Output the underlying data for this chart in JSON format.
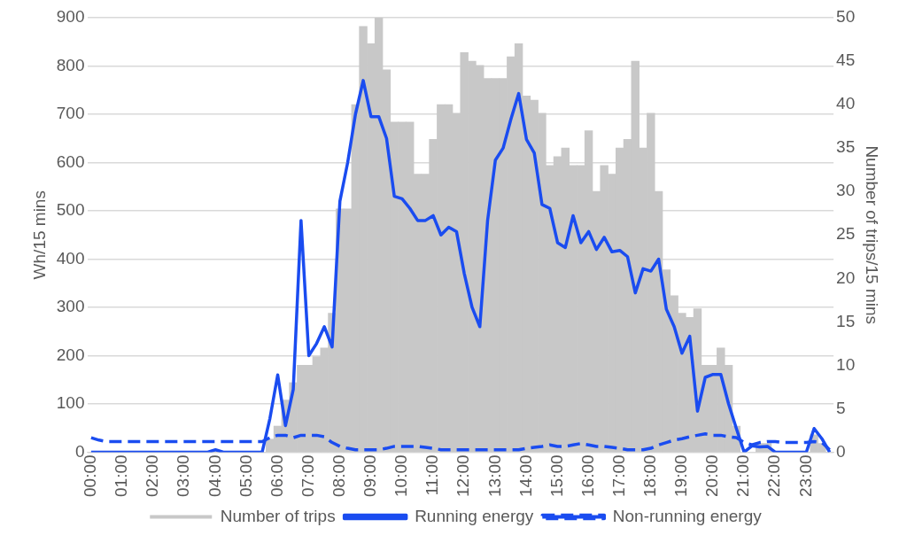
{
  "chart_data": {
    "type": "bar",
    "categories": [
      "00:00",
      null,
      null,
      null,
      "01:00",
      null,
      null,
      null,
      "02:00",
      null,
      null,
      null,
      "03:00",
      null,
      null,
      null,
      "04:00",
      null,
      null,
      null,
      "05:00",
      null,
      null,
      null,
      "06:00",
      null,
      null,
      null,
      "07:00",
      null,
      null,
      null,
      "08:00",
      null,
      null,
      null,
      "09:00",
      null,
      null,
      null,
      "10:00",
      null,
      null,
      null,
      "11:00",
      null,
      null,
      null,
      "12:00",
      null,
      null,
      null,
      "13:00",
      null,
      null,
      null,
      "14:00",
      null,
      null,
      null,
      "15:00",
      null,
      null,
      null,
      "16:00",
      null,
      null,
      null,
      "17:00",
      null,
      null,
      null,
      "18:00",
      null,
      null,
      null,
      "19:00",
      null,
      null,
      null,
      "20:00",
      null,
      null,
      null,
      "21:00",
      null,
      null,
      null,
      "22:00",
      null,
      null,
      null,
      "23:00",
      null,
      null,
      null
    ],
    "ylabel": "Wh/15 mins",
    "y2label": "Number of trips/15 mins",
    "ylim": [
      0,
      900
    ],
    "yticks": [
      0,
      100,
      200,
      300,
      400,
      500,
      600,
      700,
      800,
      900
    ],
    "y2lim": [
      0,
      50
    ],
    "y2ticks": [
      0,
      5,
      10,
      15,
      20,
      25,
      30,
      35,
      40,
      45,
      50
    ],
    "grid": "y",
    "legend": "bottom",
    "series": [
      {
        "name": "Number of trips",
        "axis": "y2",
        "color": "#c8c8c8",
        "values": [
          0,
          0,
          0,
          0,
          0,
          0,
          0,
          0,
          0,
          0,
          0,
          0,
          0,
          0,
          0,
          0,
          0,
          0,
          0,
          0,
          0,
          0,
          0,
          1.5,
          3,
          6,
          8,
          10,
          10,
          11,
          12,
          16,
          28,
          28,
          40,
          49,
          47,
          50,
          44,
          38,
          38,
          38,
          32,
          32,
          36,
          40,
          40,
          39,
          46,
          45,
          44.5,
          43,
          43,
          43,
          45.5,
          47,
          41,
          40.5,
          39,
          33,
          34,
          35,
          33,
          33,
          37,
          30,
          33,
          32,
          35,
          36,
          45,
          35,
          39,
          30,
          21,
          18,
          16,
          15.5,
          16.5,
          10,
          10,
          12,
          10,
          3,
          null,
          null,
          1,
          1,
          0,
          0,
          0,
          0,
          0,
          2,
          1,
          0
        ]
      },
      {
        "name": "Running energy",
        "type": "line",
        "line_style": "solid",
        "color": "#1a4cf0",
        "values": [
          0,
          0,
          0,
          0,
          0,
          0,
          0,
          0,
          0,
          0,
          0,
          0,
          0,
          0,
          0,
          0,
          5,
          0,
          0,
          0,
          0,
          0,
          0,
          70,
          160,
          55,
          130,
          480,
          200,
          225,
          260,
          218,
          520,
          600,
          700,
          770,
          695,
          695,
          650,
          530,
          525,
          505,
          480,
          480,
          490,
          450,
          466,
          457,
          370,
          300,
          260,
          480,
          605,
          630,
          690,
          743,
          648,
          620,
          513,
          505,
          434,
          424,
          490,
          434,
          457,
          420,
          445,
          415,
          418,
          405,
          330,
          380,
          375,
          400,
          296,
          260,
          205,
          240,
          85,
          155,
          161,
          161,
          100,
          49,
          0,
          13,
          11,
          12,
          0,
          0,
          0,
          0,
          0,
          49,
          28,
          0
        ]
      },
      {
        "name": "Non-running energy",
        "type": "line",
        "line_style": "dashed",
        "color": "#1a4cf0",
        "values": [
          30,
          25,
          22,
          22,
          22,
          22,
          22,
          22,
          22,
          22,
          22,
          22,
          22,
          22,
          22,
          22,
          22,
          22,
          22,
          22,
          22,
          22,
          22,
          30,
          35,
          35,
          30,
          35,
          35,
          35,
          32,
          20,
          12,
          8,
          5,
          5,
          5,
          5,
          8,
          12,
          12,
          12,
          12,
          10,
          8,
          5,
          5,
          5,
          5,
          5,
          5,
          5,
          5,
          5,
          5,
          5,
          8,
          10,
          12,
          15,
          12,
          12,
          15,
          18,
          15,
          12,
          12,
          10,
          8,
          5,
          5,
          5,
          8,
          15,
          20,
          25,
          28,
          32,
          35,
          38,
          35,
          35,
          32,
          30,
          20,
          15,
          20,
          22,
          22,
          20,
          20,
          20,
          20,
          22,
          20,
          5
        ]
      }
    ]
  }
}
